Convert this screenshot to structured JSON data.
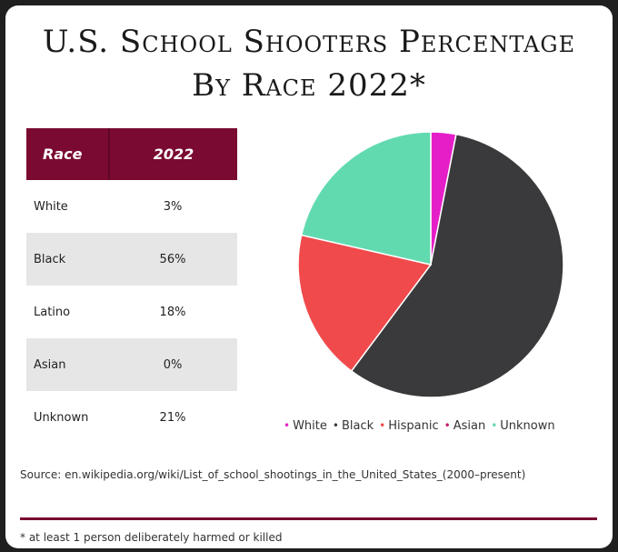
{
  "title_line1": "U.S. School Shooters Percentage",
  "title_line2": "By Race 2022*",
  "table": {
    "headers": [
      "Race",
      "2022"
    ],
    "rows": [
      [
        "White",
        "3%"
      ],
      [
        "Black",
        "56%"
      ],
      [
        "Latino",
        "18%"
      ],
      [
        "Asian",
        "0%"
      ],
      [
        "Unknown",
        "21%"
      ]
    ]
  },
  "chart_data": {
    "type": "pie",
    "categories": [
      "White",
      "Black",
      "Hispanic",
      "Asian",
      "Unknown"
    ],
    "values": [
      3,
      56,
      18,
      0,
      21
    ],
    "colors": [
      "#e51fc8",
      "#3a3a3c",
      "#f04a4c",
      "#c41a6a",
      "#62dab0"
    ],
    "legend_position": "bottom"
  },
  "source": "Source: en.wikipedia.org/wiki/List_of_school_shootings_in_the_United_States_(2000–present)",
  "footnote": "* at least 1 person deliberately harmed or killed"
}
